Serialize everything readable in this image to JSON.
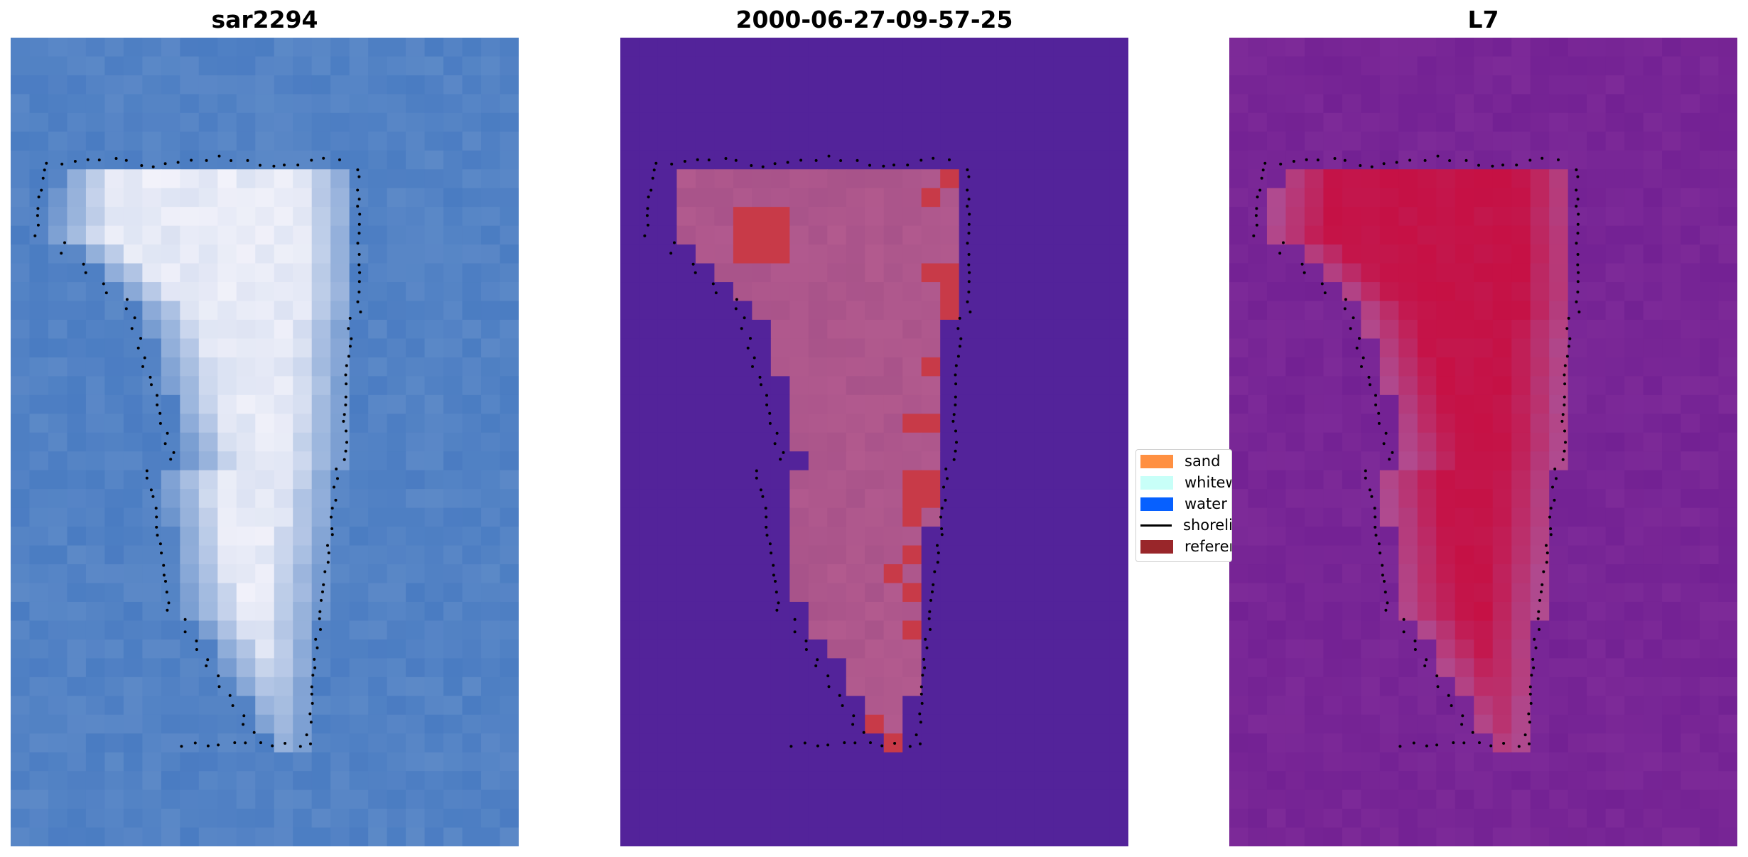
{
  "panels": [
    {
      "title": "sar2294"
    },
    {
      "title": "2000-06-27-09-57-25"
    },
    {
      "title": "L7"
    }
  ],
  "legend": {
    "items": [
      {
        "label": "sand",
        "color": "#ff9042",
        "kind": "swatch"
      },
      {
        "label": "whitewater",
        "color": "#c8fff8",
        "kind": "swatch"
      },
      {
        "label": "water",
        "color": "#0660ff",
        "kind": "swatch"
      },
      {
        "label": "shoreline",
        "color": "#000000",
        "kind": "line"
      },
      {
        "label": "reference",
        "color": "#99262a",
        "kind": "swatch"
      }
    ]
  },
  "colors": {
    "rgb_water": "#4a7cc2",
    "rgb_land": "#f2f2fa",
    "classified_background": "#53239a",
    "classified_island": "#b25a8e",
    "classified_patch": "#c83a48",
    "index_background": "#7d2a98",
    "index_high": "#c80a3c",
    "shoreline_dots": "#000000"
  }
}
